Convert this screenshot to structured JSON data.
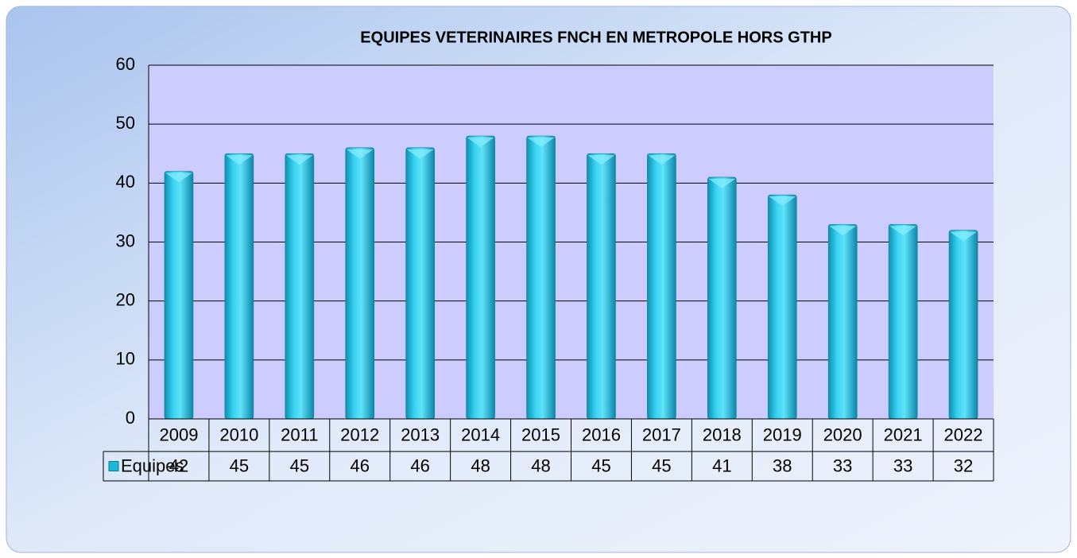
{
  "chart_data": {
    "type": "bar",
    "title": "EQUIPES VETERINAIRES FNCH EN METROPOLE HORS GTHP",
    "categories": [
      "2009",
      "2010",
      "2011",
      "2012",
      "2013",
      "2014",
      "2015",
      "2016",
      "2017",
      "2018",
      "2019",
      "2020",
      "2021",
      "2022"
    ],
    "series": [
      {
        "name": "Equipes",
        "color": "#1ab8d8",
        "values": [
          42,
          45,
          45,
          46,
          46,
          48,
          48,
          45,
          45,
          41,
          38,
          33,
          33,
          32
        ]
      }
    ],
    "ylim": [
      0,
      60
    ],
    "yticks": [
      0,
      10,
      20,
      30,
      40,
      50,
      60
    ],
    "grid": true
  }
}
